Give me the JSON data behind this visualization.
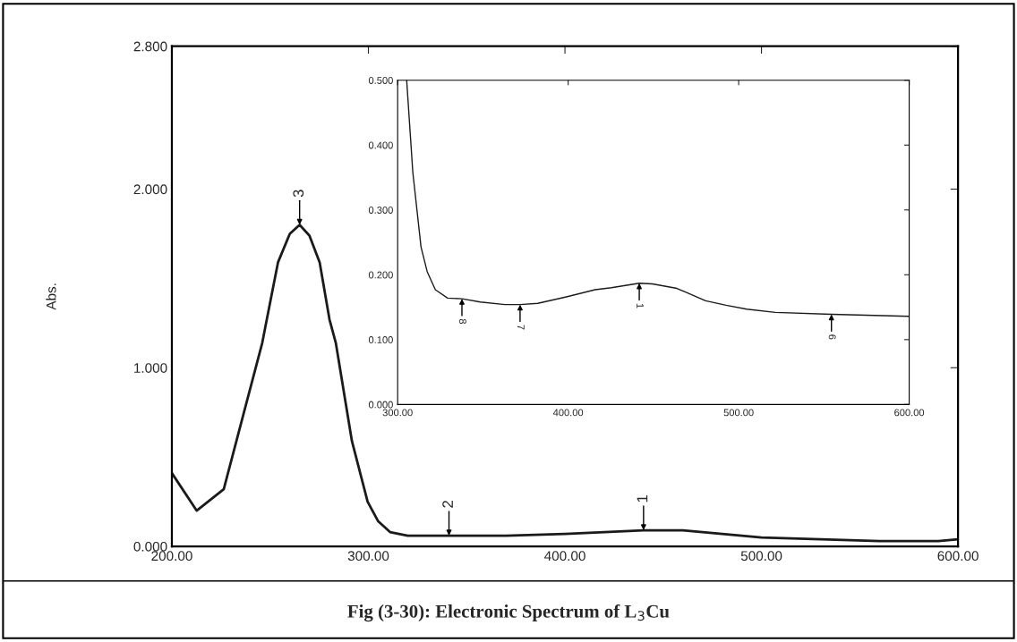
{
  "chart_data": [
    {
      "type": "line",
      "title": "Fig (3-30): Electronic Spectrum of L$_{3}$Cu",
      "ylabel": "Abs.",
      "x": [
        200,
        212.6,
        226.4,
        236.2,
        246,
        248.3,
        254,
        260,
        265,
        270,
        275.2,
        280.2,
        283.4,
        291.6,
        299.6,
        305,
        311,
        320,
        340,
        370,
        400,
        420,
        440,
        460,
        480,
        500,
        530,
        560,
        590,
        600
      ],
      "series": [
        {
          "color": "#1a1a1a",
          "values": [
            0.41,
            0.2,
            0.32,
            0.73,
            1.14,
            1.27,
            1.59,
            1.75,
            1.8,
            1.74,
            1.59,
            1.27,
            1.14,
            0.59,
            0.25,
            0.14,
            0.08,
            0.06,
            0.06,
            0.06,
            0.07,
            0.08,
            0.09,
            0.09,
            0.07,
            0.05,
            0.04,
            0.03,
            0.03,
            0.04
          ]
        }
      ],
      "xlim": [
        200,
        600
      ],
      "ylim": [
        0,
        2.8
      ],
      "xticks": [
        {
          "value": 200,
          "label": "200.00"
        },
        {
          "value": 300,
          "label": "300.00"
        },
        {
          "value": 400,
          "label": "400.00"
        },
        {
          "value": 500,
          "label": "500.00"
        },
        {
          "value": 600,
          "label": "600.00"
        }
      ],
      "yticks": [
        {
          "value": 0,
          "label": "0.000"
        },
        {
          "value": 1,
          "label": "1.000"
        },
        {
          "value": 2,
          "label": "2.000"
        },
        {
          "value": 2.8,
          "label": "2.800"
        }
      ],
      "annotations": [
        {
          "text": "3",
          "x": 265,
          "y": 1.8
        },
        {
          "text": "2",
          "x": 341,
          "y": 0.06
        },
        {
          "text": "1",
          "x": 440,
          "y": 0.09
        }
      ],
      "grid": false,
      "legend": false
    },
    {
      "type": "line",
      "x": [
        305.3,
        308.9,
        313.7,
        317.3,
        322.1,
        329.3,
        337.7,
        348.5,
        362.9,
        371.8,
        382.2,
        399,
        415.8,
        425.4,
        441.7,
        449.4,
        463.8,
        480.6,
        492.6,
        504.7,
        521.5,
        554.4,
        599.5
      ],
      "series": [
        {
          "color": "#1a1a1a",
          "values": [
            0.5,
            0.358,
            0.243,
            0.205,
            0.177,
            0.164,
            0.163,
            0.158,
            0.154,
            0.154,
            0.156,
            0.166,
            0.177,
            0.18,
            0.187,
            0.186,
            0.179,
            0.16,
            0.153,
            0.147,
            0.142,
            0.139,
            0.136
          ]
        }
      ],
      "xlim": [
        300,
        600
      ],
      "ylim": [
        0,
        0.5
      ],
      "xticks": [
        {
          "value": 300,
          "label": "300.00"
        },
        {
          "value": 400,
          "label": "400.00"
        },
        {
          "value": 500,
          "label": "500.00"
        },
        {
          "value": 600,
          "label": "600.00"
        }
      ],
      "yticks": [
        {
          "value": 0,
          "label": "0.000"
        },
        {
          "value": 0.1,
          "label": "0.100"
        },
        {
          "value": 0.2,
          "label": "0.200"
        },
        {
          "value": 0.3,
          "label": "0.300"
        },
        {
          "value": 0.4,
          "label": "0.400"
        },
        {
          "value": 0.5,
          "label": "0.500"
        }
      ],
      "annotations": [
        {
          "text": "8",
          "x": 337.7,
          "y": 0.163
        },
        {
          "text": "7",
          "x": 371.8,
          "y": 0.154
        },
        {
          "text": "1",
          "x": 441.7,
          "y": 0.187
        },
        {
          "text": "6",
          "x": 554.4,
          "y": 0.139
        }
      ],
      "grid": false,
      "legend": false
    }
  ]
}
